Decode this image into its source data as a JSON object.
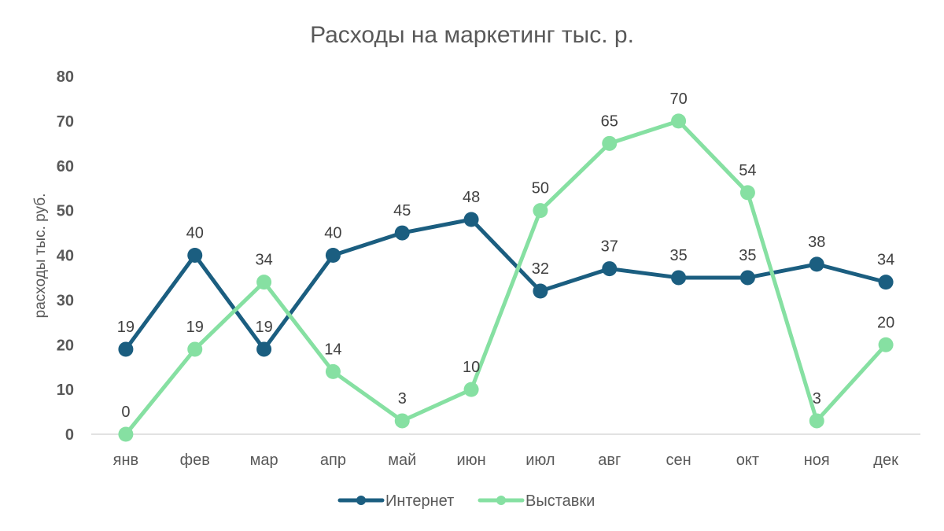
{
  "chart_data": {
    "type": "line",
    "title": "Расходы на маркетинг  тыс. р.",
    "xlabel": "",
    "ylabel": "расходы тыс. руб.",
    "ylim": [
      0,
      80
    ],
    "yticks": [
      0,
      10,
      20,
      30,
      40,
      50,
      60,
      70,
      80
    ],
    "grid": false,
    "legend_position": "bottom",
    "categories": [
      "янв",
      "фев",
      "мар",
      "апр",
      "май",
      "июн",
      "июл",
      "авг",
      "сен",
      "окт",
      "ноя",
      "дек"
    ],
    "series": [
      {
        "name": "Интернет",
        "color": "#1b5e80",
        "values": [
          19,
          40,
          19,
          40,
          45,
          48,
          32,
          37,
          35,
          35,
          38,
          34
        ]
      },
      {
        "name": "Выставки",
        "color": "#86e0a2",
        "values": [
          0,
          19,
          34,
          14,
          3,
          10,
          50,
          65,
          70,
          54,
          3,
          20
        ]
      }
    ]
  }
}
